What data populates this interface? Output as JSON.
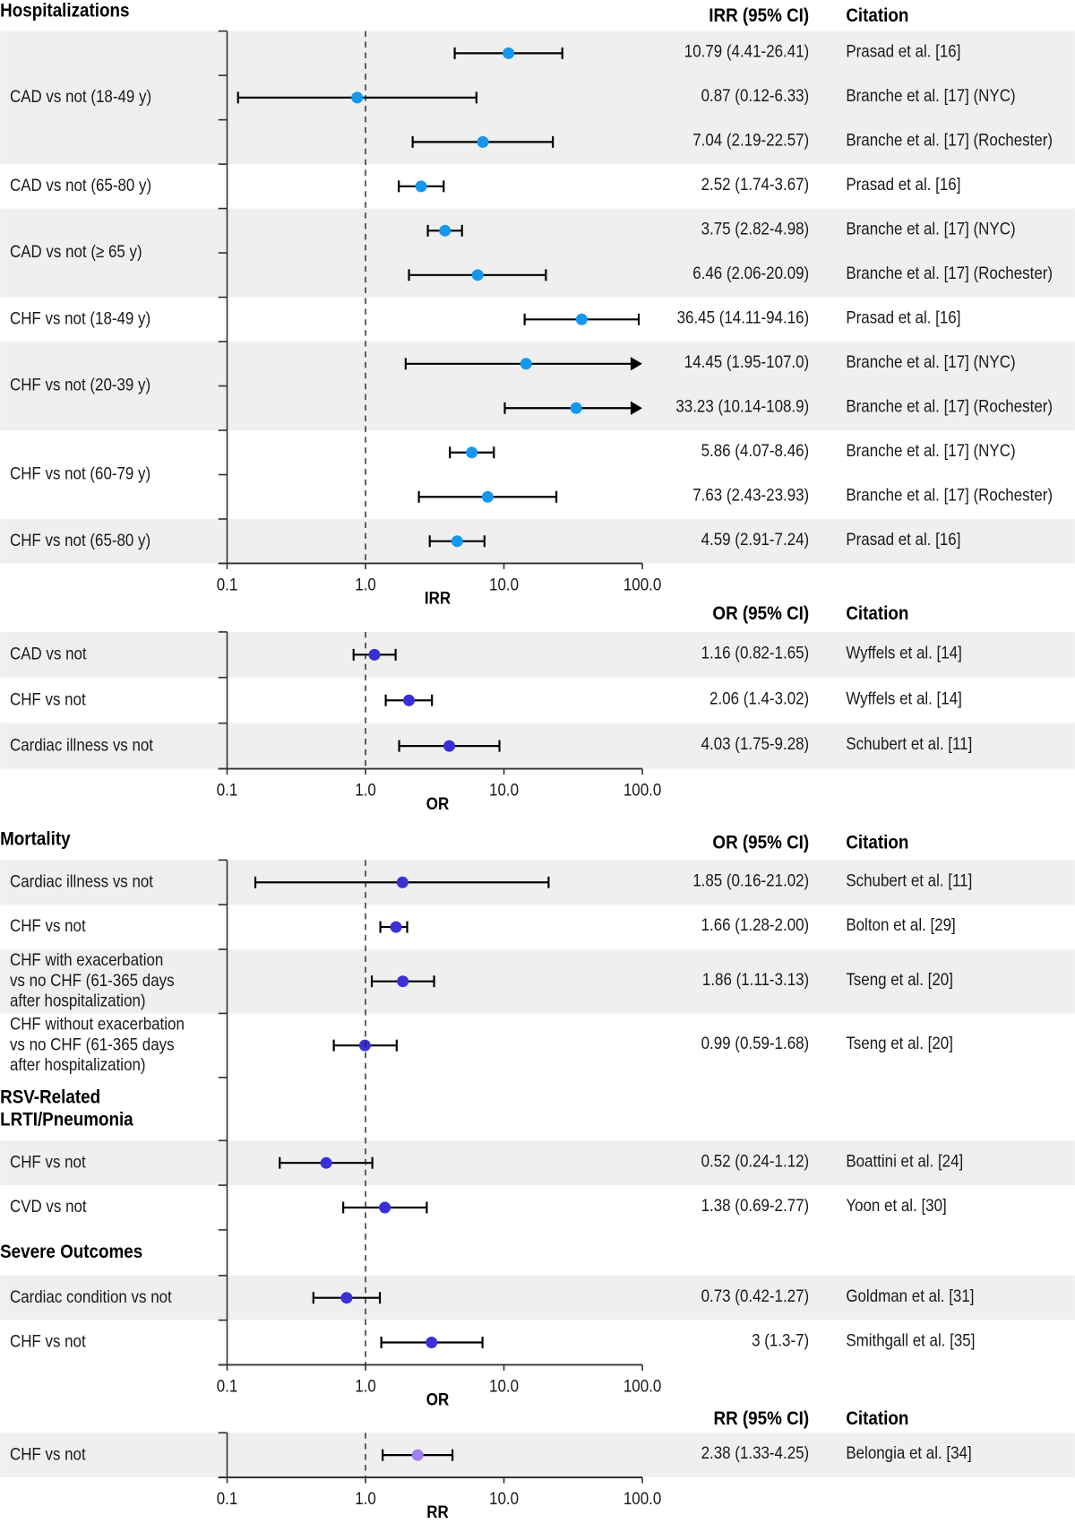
{
  "colors": {
    "irr": "#1597ee",
    "or": "#3a30d8",
    "rr": "#a07ff0",
    "band": "#efefef",
    "line": "#000000"
  },
  "chart_data": {
    "type": "forest",
    "x_scale": "log",
    "xlim": [
      0.1,
      100
    ],
    "reference_line": 1.0,
    "panels": [
      {
        "id": "hosp",
        "title": "Hospitalizations",
        "measure_header": "IRR (95% CI)",
        "citation_header": "Citation",
        "xlabel": "IRR",
        "ticks": [
          "0.1",
          "1.0",
          "10.0",
          "100.0"
        ],
        "color": "irr",
        "groups": [
          {
            "label": [
              "CAD vs not (18-49 y)"
            ],
            "shaded": true,
            "studies": [
              {
                "est": 10.79,
                "lo": 4.41,
                "hi": 26.41,
                "ci": "10.79 (4.41-26.41)",
                "citation": "Prasad et al. [16]"
              },
              {
                "est": 0.87,
                "lo": 0.12,
                "hi": 6.33,
                "ci": "0.87 (0.12-6.33)",
                "citation": "Branche et al. [17] (NYC)"
              },
              {
                "est": 7.04,
                "lo": 2.19,
                "hi": 22.57,
                "ci": "7.04 (2.19-22.57)",
                "citation": "Branche et al. [17] (Rochester)"
              }
            ]
          },
          {
            "label": [
              "CAD vs not (65-80 y)"
            ],
            "shaded": false,
            "studies": [
              {
                "est": 2.52,
                "lo": 1.74,
                "hi": 3.67,
                "ci": "2.52 (1.74-3.67)",
                "citation": "Prasad et al. [16]"
              }
            ]
          },
          {
            "label": [
              "CAD vs not (≥ 65 y)"
            ],
            "shaded": true,
            "studies": [
              {
                "est": 3.75,
                "lo": 2.82,
                "hi": 4.98,
                "ci": "3.75 (2.82-4.98)",
                "citation": "Branche et al. [17] (NYC)"
              },
              {
                "est": 6.46,
                "lo": 2.06,
                "hi": 20.09,
                "ci": "6.46 (2.06-20.09)",
                "citation": "Branche et al. [17] (Rochester)"
              }
            ]
          },
          {
            "label": [
              "CHF vs not (18-49 y)"
            ],
            "shaded": false,
            "studies": [
              {
                "est": 36.45,
                "lo": 14.11,
                "hi": 94.16,
                "ci": "36.45 (14.11-94.16)",
                "citation": "Prasad et al. [16]"
              }
            ]
          },
          {
            "label": [
              "CHF vs not (20-39 y)"
            ],
            "shaded": true,
            "studies": [
              {
                "est": 14.45,
                "lo": 1.95,
                "hi": 107.0,
                "ci": "14.45 (1.95-107.0)",
                "citation": "Branche et al. [17] (NYC)"
              },
              {
                "est": 33.23,
                "lo": 10.14,
                "hi": 108.9,
                "ci": "33.23 (10.14-108.9)",
                "citation": "Branche et al. [17] (Rochester)"
              }
            ]
          },
          {
            "label": [
              "CHF vs not (60-79 y)"
            ],
            "shaded": false,
            "studies": [
              {
                "est": 5.86,
                "lo": 4.07,
                "hi": 8.46,
                "ci": "5.86 (4.07-8.46)",
                "citation": "Branche et al. [17] (NYC)"
              },
              {
                "est": 7.63,
                "lo": 2.43,
                "hi": 23.93,
                "ci": "7.63 (2.43-23.93)",
                "citation": "Branche et al. [17] (Rochester)"
              }
            ]
          },
          {
            "label": [
              "CHF vs not (65-80 y)"
            ],
            "shaded": true,
            "studies": [
              {
                "est": 4.59,
                "lo": 2.91,
                "hi": 7.24,
                "ci": "4.59 (2.91-7.24)",
                "citation": "Prasad et al. [16]"
              }
            ]
          }
        ]
      },
      {
        "id": "or1",
        "title": "",
        "measure_header": "OR (95% CI)",
        "citation_header": "Citation",
        "xlabel": "OR",
        "ticks": [
          "0.1",
          "1.0",
          "10.0",
          "100.0"
        ],
        "color": "or",
        "groups": [
          {
            "label": [
              "CAD vs not"
            ],
            "shaded": true,
            "studies": [
              {
                "est": 1.16,
                "lo": 0.82,
                "hi": 1.65,
                "ci": "1.16 (0.82-1.65)",
                "citation": "Wyffels et al. [14]"
              }
            ]
          },
          {
            "label": [
              "CHF vs not"
            ],
            "shaded": false,
            "studies": [
              {
                "est": 2.06,
                "lo": 1.4,
                "hi": 3.02,
                "ci": "2.06 (1.4-3.02)",
                "citation": "Wyffels et al. [14]"
              }
            ]
          },
          {
            "label": [
              "Cardiac illness vs not"
            ],
            "shaded": true,
            "studies": [
              {
                "est": 4.03,
                "lo": 1.75,
                "hi": 9.28,
                "ci": "4.03 (1.75-9.28)",
                "citation": "Schubert et al. [11]"
              }
            ]
          }
        ]
      },
      {
        "id": "mort",
        "title": "Mortality",
        "measure_header": "OR (95% CI)",
        "citation_header": "Citation",
        "xlabel": "OR",
        "ticks": [
          "0.1",
          "1.0",
          "10.0",
          "100.0"
        ],
        "color": "or",
        "groups": [
          {
            "label": [
              "Cardiac illness vs not"
            ],
            "shaded": true,
            "studies": [
              {
                "est": 1.85,
                "lo": 0.16,
                "hi": 21.02,
                "ci": "1.85 (0.16-21.02)",
                "citation": "Schubert et al. [11]"
              }
            ]
          },
          {
            "label": [
              "CHF vs not"
            ],
            "shaded": false,
            "studies": [
              {
                "est": 1.66,
                "lo": 1.28,
                "hi": 2.0,
                "ci": "1.66 (1.28-2.00)",
                "citation": "Bolton et al. [29]"
              }
            ]
          },
          {
            "label": [
              "CHF with exacerbation",
              "vs no CHF (61-365 days",
              "after hospitalization)"
            ],
            "shaded": true,
            "studies": [
              {
                "est": 1.86,
                "lo": 1.11,
                "hi": 3.13,
                "ci": "1.86 (1.11-3.13)",
                "citation": "Tseng et al. [20]"
              }
            ]
          },
          {
            "label": [
              "CHF without exacerbation",
              "vs no CHF (61-365 days",
              "after hospitalization)"
            ],
            "shaded": false,
            "studies": [
              {
                "est": 0.99,
                "lo": 0.59,
                "hi": 1.68,
                "ci": "0.99 (0.59-1.68)",
                "citation": "Tseng et al. [20]"
              }
            ]
          },
          {
            "subheading": [
              "RSV-Related",
              "LRTI/Pneumonia"
            ]
          },
          {
            "label": [
              "CHF vs not"
            ],
            "shaded": true,
            "studies": [
              {
                "est": 0.52,
                "lo": 0.24,
                "hi": 1.12,
                "ci": "0.52 (0.24-1.12)",
                "citation": "Boattini et al. [24]"
              }
            ]
          },
          {
            "label": [
              "CVD vs not"
            ],
            "shaded": false,
            "studies": [
              {
                "est": 1.38,
                "lo": 0.69,
                "hi": 2.77,
                "ci": "1.38 (0.69-2.77)",
                "citation": "Yoon et al. [30]"
              }
            ]
          },
          {
            "subheading": [
              "Severe Outcomes"
            ]
          },
          {
            "label": [
              "Cardiac condition vs not"
            ],
            "shaded": true,
            "studies": [
              {
                "est": 0.73,
                "lo": 0.42,
                "hi": 1.27,
                "ci": "0.73 (0.42-1.27)",
                "citation": "Goldman et al. [31]"
              }
            ]
          },
          {
            "label": [
              "CHF vs not"
            ],
            "shaded": false,
            "studies": [
              {
                "est": 3,
                "lo": 1.3,
                "hi": 7,
                "ci": "3 (1.3-7)",
                "citation": "Smithgall et al. [35]"
              }
            ]
          }
        ]
      },
      {
        "id": "rr",
        "title": "",
        "measure_header": "RR (95% CI)",
        "citation_header": "Citation",
        "xlabel": "RR",
        "ticks": [
          "0.1",
          "1.0",
          "10.0",
          "100.0"
        ],
        "color": "rr",
        "groups": [
          {
            "label": [
              "CHF vs not"
            ],
            "shaded": true,
            "studies": [
              {
                "est": 2.38,
                "lo": 1.33,
                "hi": 4.25,
                "ci": "2.38 (1.33-4.25)",
                "citation": "Belongia et al. [34]"
              }
            ]
          }
        ]
      }
    ]
  }
}
